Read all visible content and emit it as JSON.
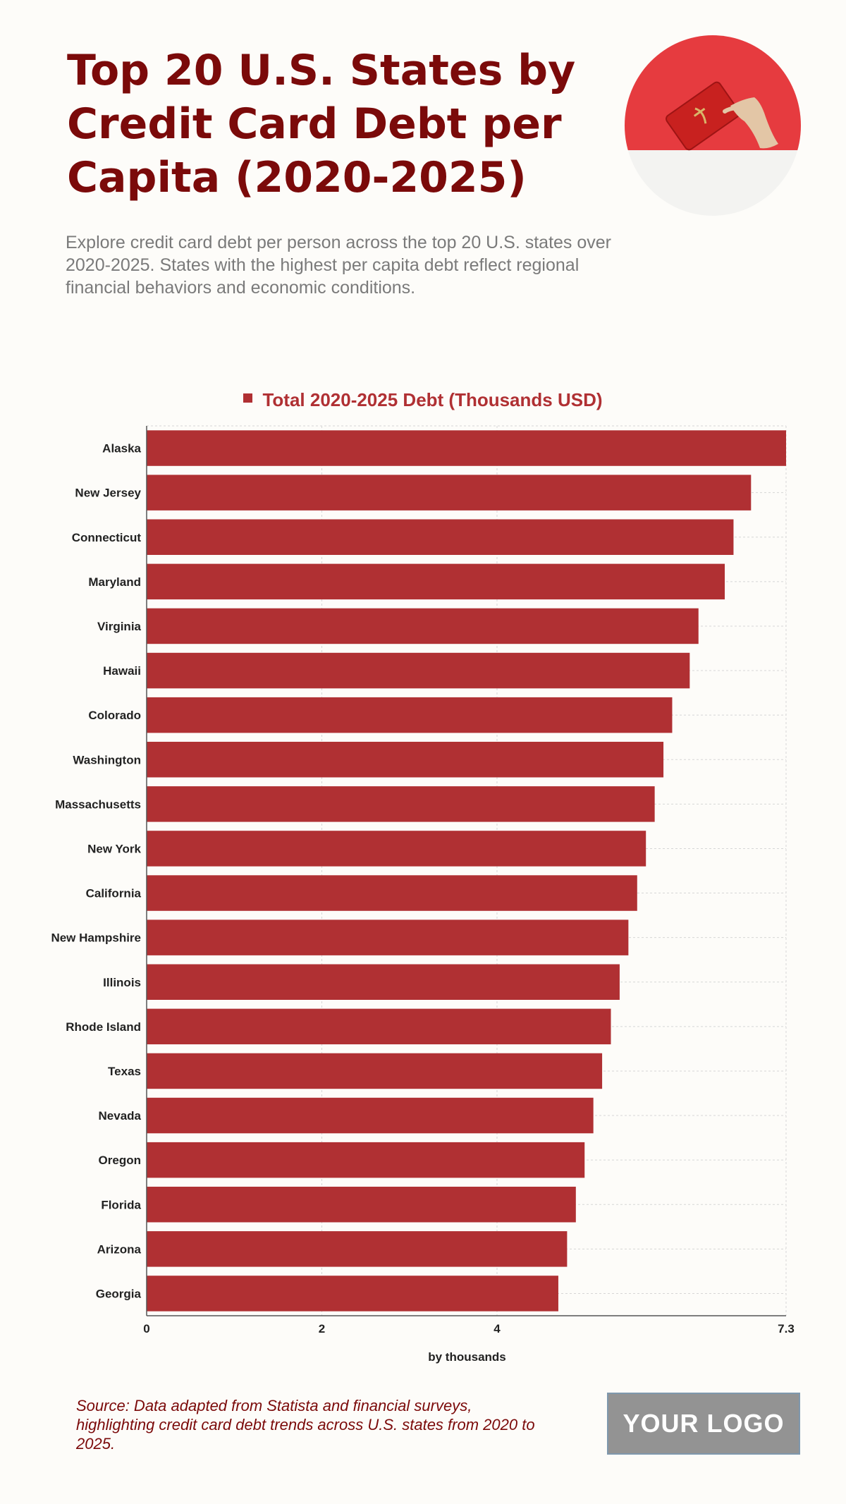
{
  "header": {
    "title": "Top 20 U.S. States by Credit Card Debt per Capita (2020-2025)",
    "subtitle": "Explore credit card debt per person across the top 20 U.S. states over 2020-2025. States with the highest per capita debt reflect regional financial behaviors and economic conditions."
  },
  "footer": {
    "source": "Source: Data adapted from Statista and financial surveys, highlighting credit card debt trends across U.S. states from 2020 to 2025.",
    "logo_text": "YOUR LOGO"
  },
  "chart_data": {
    "type": "bar",
    "orientation": "horizontal",
    "categories": [
      "Alaska",
      "New Jersey",
      "Connecticut",
      "Maryland",
      "Virginia",
      "Hawaii",
      "Colorado",
      "Washington",
      "Massachusetts",
      "New York",
      "California",
      "New Hampshire",
      "Illinois",
      "Rhode Island",
      "Texas",
      "Nevada",
      "Oregon",
      "Florida",
      "Arizona",
      "Georgia"
    ],
    "series": [
      {
        "name": "Total 2020-2025 Debt (Thousands USD)",
        "color": "#b03033",
        "values": [
          7.3,
          6.9,
          6.7,
          6.6,
          6.3,
          6.2,
          6.0,
          5.9,
          5.8,
          5.7,
          5.6,
          5.5,
          5.4,
          5.3,
          5.2,
          5.1,
          5.0,
          4.9,
          4.8,
          4.7
        ]
      }
    ],
    "xlabel": "by thousands",
    "xlim": [
      0,
      7.3
    ],
    "xticks": [
      0,
      2,
      4,
      7.3
    ],
    "grid": true,
    "legend_position": "top-center"
  }
}
